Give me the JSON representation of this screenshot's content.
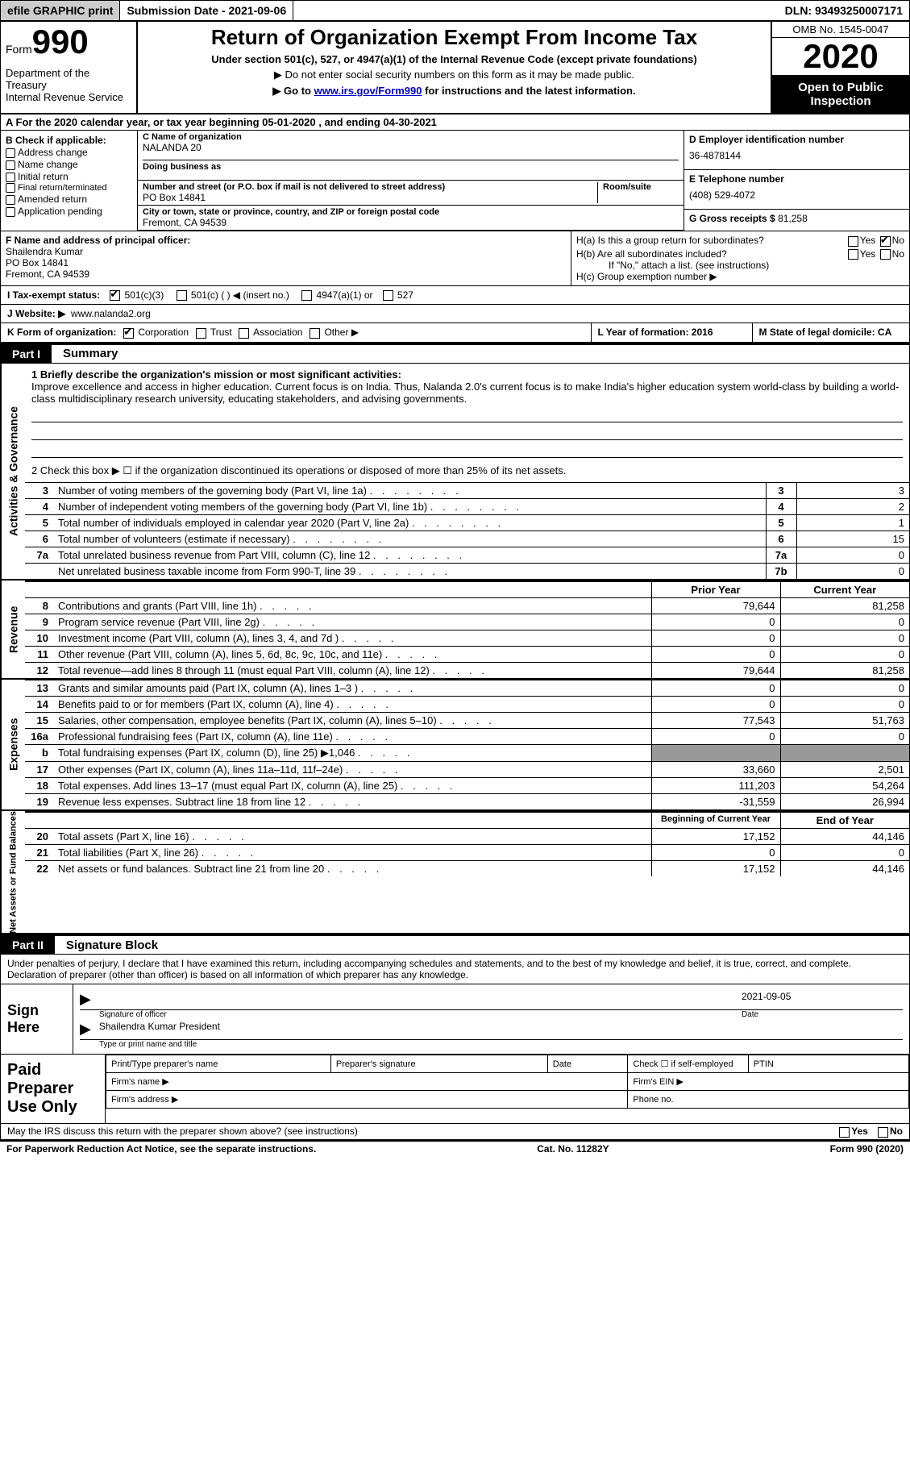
{
  "topbar": {
    "efile": "efile GRAPHIC print",
    "subdate_label": "Submission Date - ",
    "subdate": "2021-09-06",
    "dln_label": "DLN: ",
    "dln": "93493250007171"
  },
  "header": {
    "form_word": "Form",
    "form_num": "990",
    "dept": "Department of the Treasury\nInternal Revenue Service",
    "title": "Return of Organization Exempt From Income Tax",
    "subtitle": "Under section 501(c), 527, or 4947(a)(1) of the Internal Revenue Code (except private foundations)",
    "note1": "▶ Do not enter social security numbers on this form as it may be made public.",
    "note2_pre": "▶ Go to ",
    "note2_link": "www.irs.gov/Form990",
    "note2_post": " for instructions and the latest information.",
    "omb": "OMB No. 1545-0047",
    "year": "2020",
    "opentopublic": "Open to Public Inspection"
  },
  "row_a": "A For the 2020 calendar year, or tax year beginning 05-01-2020    , and ending 04-30-2021",
  "col_b": {
    "label": "B Check if applicable:",
    "items": [
      "Address change",
      "Name change",
      "Initial return",
      "Final return/terminated",
      "Amended return",
      "Application pending"
    ]
  },
  "col_c": {
    "c_label": "C Name of organization",
    "c_name": "NALANDA 20",
    "dba_label": "Doing business as",
    "addr_label": "Number and street (or P.O. box if mail is not delivered to street address)",
    "addr_room": "Room/suite",
    "addr": "PO Box 14841",
    "city_label": "City or town, state or province, country, and ZIP or foreign postal code",
    "city": "Fremont, CA  94539",
    "f_label": "F Name and address of principal officer:",
    "f_name": "Shailendra Kumar",
    "f_addr1": "PO Box 14841",
    "f_addr2": "Fremont, CA  94539"
  },
  "col_d": {
    "d_label": "D Employer identification number",
    "d_val": "36-4878144",
    "e_label": "E Telephone number",
    "e_val": "(408) 529-4072",
    "g_label": "G Gross receipts $ ",
    "g_val": "81,258"
  },
  "h_block": {
    "ha": "H(a)  Is this a group return for subordinates?",
    "hb": "H(b)  Are all subordinates included?",
    "hb_note": "If \"No,\" attach a list. (see instructions)",
    "hc": "H(c)  Group exemption number ▶",
    "yes": "Yes",
    "no": "No"
  },
  "tax_status": {
    "label": "I    Tax-exempt status:",
    "o1": "501(c)(3)",
    "o2": "501(c) (  ) ◀ (insert no.)",
    "o3": "4947(a)(1) or",
    "o4": "527"
  },
  "website": {
    "label": "J   Website: ▶",
    "val": "www.nalanda2.org"
  },
  "k_row": {
    "label": "K Form of organization:",
    "o1": "Corporation",
    "o2": "Trust",
    "o3": "Association",
    "o4": "Other ▶"
  },
  "lm": {
    "l": "L Year of formation: 2016",
    "m": "M State of legal domicile: CA"
  },
  "parts": {
    "p1_tag": "Part I",
    "p1_title": "Summary",
    "p2_tag": "Part II",
    "p2_title": "Signature Block"
  },
  "vert_labels": {
    "a": "Activities & Governance",
    "b": "Revenue",
    "c": "Expenses",
    "d": "Net Assets or Fund Balances"
  },
  "mission": {
    "q1_label": "1   Briefly describe the organization's mission or most significant activities:",
    "q1_text": "Improve excellence and access in higher education. Current focus is on India. Thus, Nalanda 2.0's current focus is to make India's higher education system world-class by building a world-class multidisciplinary research university, educating stakeholders, and advising governments.",
    "q2": "2   Check this box ▶ ☐  if the organization discontinued its operations or disposed of more than 25% of its net assets."
  },
  "lines_ag": [
    {
      "n": "3",
      "t": "Number of voting members of the governing body (Part VI, line 1a)",
      "ln": "3",
      "v": "3"
    },
    {
      "n": "4",
      "t": "Number of independent voting members of the governing body (Part VI, line 1b)",
      "ln": "4",
      "v": "2"
    },
    {
      "n": "5",
      "t": "Total number of individuals employed in calendar year 2020 (Part V, line 2a)",
      "ln": "5",
      "v": "1"
    },
    {
      "n": "6",
      "t": "Total number of volunteers (estimate if necessary)",
      "ln": "6",
      "v": "15"
    },
    {
      "n": "7a",
      "t": "Total unrelated business revenue from Part VIII, column (C), line 12",
      "ln": "7a",
      "v": "0"
    },
    {
      "n": "",
      "t": "Net unrelated business taxable income from Form 990-T, line 39",
      "ln": "7b",
      "v": "0"
    }
  ],
  "col_hdrs": {
    "prior": "Prior Year",
    "current": "Current Year",
    "boy": "Beginning of Current Year",
    "eoy": "End of Year"
  },
  "lines_rev": [
    {
      "n": "8",
      "t": "Contributions and grants (Part VIII, line 1h)",
      "p": "79,644",
      "c": "81,258"
    },
    {
      "n": "9",
      "t": "Program service revenue (Part VIII, line 2g)",
      "p": "0",
      "c": "0"
    },
    {
      "n": "10",
      "t": "Investment income (Part VIII, column (A), lines 3, 4, and 7d )",
      "p": "0",
      "c": "0"
    },
    {
      "n": "11",
      "t": "Other revenue (Part VIII, column (A), lines 5, 6d, 8c, 9c, 10c, and 11e)",
      "p": "0",
      "c": "0"
    },
    {
      "n": "12",
      "t": "Total revenue—add lines 8 through 11 (must equal Part VIII, column (A), line 12)",
      "p": "79,644",
      "c": "81,258"
    }
  ],
  "lines_exp": [
    {
      "n": "13",
      "t": "Grants and similar amounts paid (Part IX, column (A), lines 1–3 )",
      "p": "0",
      "c": "0"
    },
    {
      "n": "14",
      "t": "Benefits paid to or for members (Part IX, column (A), line 4)",
      "p": "0",
      "c": "0"
    },
    {
      "n": "15",
      "t": "Salaries, other compensation, employee benefits (Part IX, column (A), lines 5–10)",
      "p": "77,543",
      "c": "51,763"
    },
    {
      "n": "16a",
      "t": "Professional fundraising fees (Part IX, column (A), line 11e)",
      "p": "0",
      "c": "0"
    },
    {
      "n": "b",
      "t": "Total fundraising expenses (Part IX, column (D), line 25) ▶1,046",
      "p": "",
      "c": "",
      "shade": true
    },
    {
      "n": "17",
      "t": "Other expenses (Part IX, column (A), lines 11a–11d, 11f–24e)",
      "p": "33,660",
      "c": "2,501"
    },
    {
      "n": "18",
      "t": "Total expenses. Add lines 13–17 (must equal Part IX, column (A), line 25)",
      "p": "111,203",
      "c": "54,264"
    },
    {
      "n": "19",
      "t": "Revenue less expenses. Subtract line 18 from line 12",
      "p": "-31,559",
      "c": "26,994"
    }
  ],
  "lines_net": [
    {
      "n": "20",
      "t": "Total assets (Part X, line 16)",
      "p": "17,152",
      "c": "44,146"
    },
    {
      "n": "21",
      "t": "Total liabilities (Part X, line 26)",
      "p": "0",
      "c": "0"
    },
    {
      "n": "22",
      "t": "Net assets or fund balances. Subtract line 21 from line 20",
      "p": "17,152",
      "c": "44,146"
    }
  ],
  "sig": {
    "perjury": "Under penalties of perjury, I declare that I have examined this return, including accompanying schedules and statements, and to the best of my knowledge and belief, it is true, correct, and complete. Declaration of preparer (other than officer) is based on all information of which preparer has any knowledge.",
    "sign_here": "Sign Here",
    "sig_officer": "Signature of officer",
    "date": "Date",
    "date_val": "2021-09-05",
    "name_title": "Shailendra Kumar  President",
    "name_title_sub": "Type or print name and title",
    "paid_prep": "Paid Preparer Use Only",
    "pt_name": "Print/Type preparer's name",
    "pt_sig": "Preparer's signature",
    "pt_date": "Date",
    "pt_check": "Check ☐ if self-employed",
    "pt_ptin": "PTIN",
    "firm_name": "Firm's name   ▶",
    "firm_ein": "Firm's EIN ▶",
    "firm_addr": "Firm's address ▶",
    "phone": "Phone no."
  },
  "footer": {
    "discuss": "May the IRS discuss this return with the preparer shown above? (see instructions)",
    "yes": "Yes",
    "no": "No",
    "paperwork": "For Paperwork Reduction Act Notice, see the separate instructions.",
    "cat": "Cat. No. 11282Y",
    "formno": "Form 990 (2020)"
  }
}
